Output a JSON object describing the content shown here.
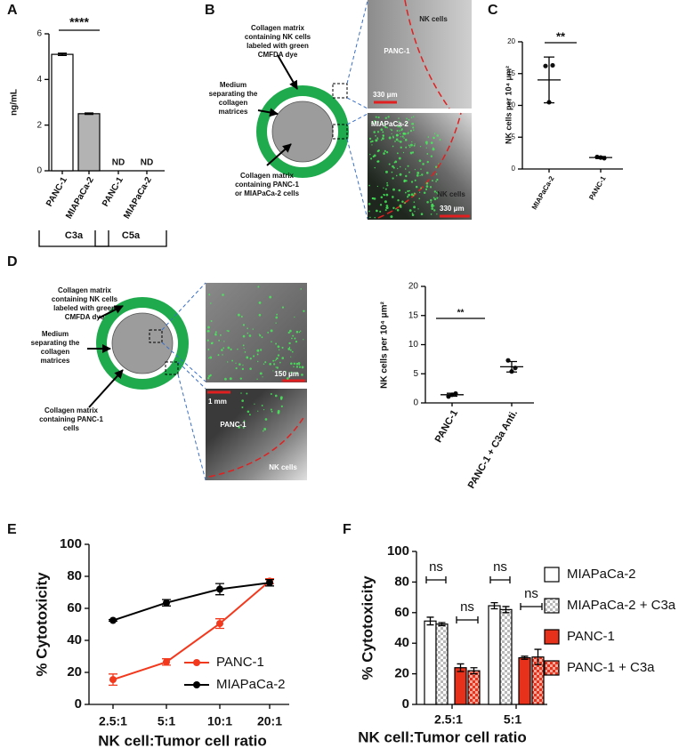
{
  "chart_data": [
    {
      "panel": "A",
      "type": "bar",
      "y_label": "ng/mL",
      "categories": [
        "PANC-1",
        "MIAPaCa-2",
        "PANC-1",
        "MIAPaCa-2"
      ],
      "values": [
        5.1,
        2.5,
        null,
        null
      ],
      "errors": [
        0.05,
        0.03,
        null,
        null
      ],
      "value_labels": [
        null,
        null,
        "ND",
        "ND"
      ],
      "groups": [
        "C3a",
        "C5a"
      ],
      "significance": "****",
      "colors": [
        "#ffffff",
        "#b3b3b3"
      ],
      "ylim": [
        0,
        6
      ],
      "yticks": [
        0,
        2,
        4,
        6
      ]
    },
    {
      "panel": "C",
      "type": "dot",
      "y_label": "NK cells per 10⁴ μm²",
      "categories": [
        "MIAPaCa-2",
        "PANC-1"
      ],
      "points": [
        [
          16.2,
          16.3,
          10.5
        ],
        [
          1.9,
          1.7,
          1.8
        ]
      ],
      "means": [
        14,
        1.8
      ],
      "sd": [
        3.6,
        0.15
      ],
      "significance": "**",
      "ylim": [
        0,
        20
      ],
      "yticks": [
        0,
        5,
        10,
        15,
        20
      ]
    },
    {
      "panel": "D",
      "type": "dot",
      "y_label": "NK cells per 10⁴ μm²",
      "categories": [
        "PANC-1",
        "PANC-1 + C3a Anti."
      ],
      "points": [
        [
          1.1,
          1.6,
          1.4
        ],
        [
          7.3,
          6.0,
          5.4
        ]
      ],
      "means": [
        1.4,
        6.2
      ],
      "sd": [
        0.25,
        0.9
      ],
      "significance": "**",
      "ylim": [
        0,
        20
      ],
      "yticks": [
        0,
        5,
        10,
        15,
        20
      ]
    },
    {
      "panel": "E",
      "type": "line",
      "y_label": "% Cytotoxicity",
      "x_label": "NK cell:Tumor cell ratio",
      "categories": [
        "2.5:1",
        "5:1",
        "10:1",
        "20:1"
      ],
      "series": [
        {
          "name": "PANC-1",
          "color": "#f2391e",
          "values": [
            15.5,
            26.5,
            50.5,
            77
          ],
          "errors": [
            3.5,
            2,
            3,
            1.5
          ]
        },
        {
          "name": "MIAPaCa-2",
          "color": "#000000",
          "values": [
            52.5,
            63.5,
            72,
            76
          ],
          "errors": [
            0.5,
            2,
            3.5,
            2
          ]
        }
      ],
      "ylim": [
        0,
        100
      ],
      "yticks": [
        0,
        20,
        40,
        60,
        80,
        100
      ]
    },
    {
      "panel": "F",
      "type": "bar",
      "y_label": "% Cytotoxicity",
      "x_label": "NK cell:Tumor cell ratio",
      "categories": [
        "2.5:1",
        "5:1"
      ],
      "series": [
        {
          "name": "MIAPaCa-2",
          "color": "#ffffff",
          "pattern": "solid",
          "values": [
            54.5,
            64.5
          ],
          "errors": [
            2.5,
            2
          ]
        },
        {
          "name": "MIAPaCa-2 + C3a",
          "color": "#b8b8b8",
          "pattern": "checker",
          "values": [
            52.5,
            62
          ],
          "errors": [
            1,
            2
          ]
        },
        {
          "name": "PANC-1",
          "color": "#e8311a",
          "pattern": "solid",
          "values": [
            24,
            30.5
          ],
          "errors": [
            2.5,
            1
          ]
        },
        {
          "name": "PANC-1 + C3a",
          "color": "#e8311a",
          "pattern": "checker",
          "values": [
            22,
            31
          ],
          "errors": [
            2,
            5
          ]
        }
      ],
      "comparisons": [
        "ns",
        "ns",
        "ns",
        "ns"
      ],
      "ylim": [
        0,
        100
      ],
      "yticks": [
        0,
        20,
        40,
        60,
        80,
        100
      ]
    }
  ],
  "diagrams": [
    {
      "panel": "B",
      "outer_label": [
        "Collagen matrix",
        "containing NK cells",
        "labeled with green",
        "CMFDA dye"
      ],
      "medium_label": [
        "Medium",
        "separating the",
        "collagen",
        "matrices"
      ],
      "inner_label": [
        "Collagen matrix",
        "containing PANC-1",
        "or MIAPaCa-2 cells"
      ],
      "images": [
        {
          "texts": [
            "NK cells",
            "PANC-1",
            "330 μm"
          ]
        },
        {
          "texts": [
            "MIAPaCa-2",
            "NK cells",
            "330 μm"
          ]
        }
      ]
    },
    {
      "outer_label": [
        "Collagen matrix",
        "containing NK cells",
        "labeled with green",
        "CMFDA dye"
      ],
      "medium_label": [
        "Medium",
        "separating the",
        "collagen",
        "matrices"
      ],
      "inner_label": [
        "Collagen matrix",
        "containing PANC-1",
        "cells"
      ],
      "images": [
        {
          "texts": [
            "150 μm"
          ]
        },
        {
          "texts": [
            "1 mm",
            "PANC-1",
            "NK cells"
          ]
        }
      ]
    }
  ]
}
